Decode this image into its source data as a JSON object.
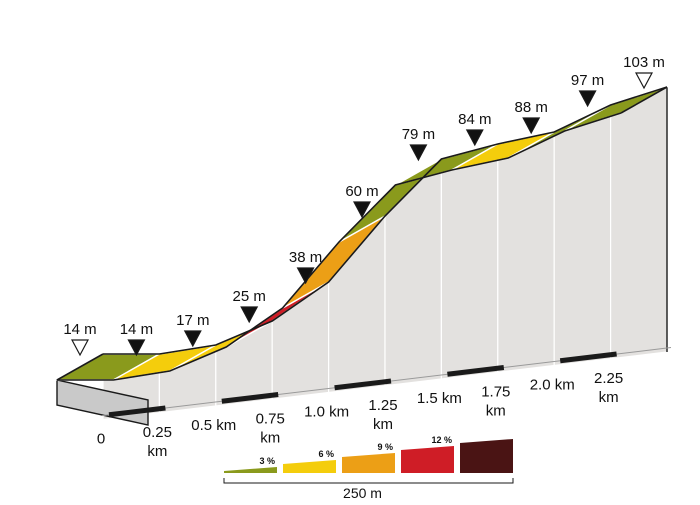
{
  "chart_data": {
    "type": "area",
    "title": "",
    "xlabel": "",
    "ylabel": "",
    "x_unit": "km",
    "y_unit": "m",
    "points": [
      {
        "km": 0.0,
        "elevation_m": 14
      },
      {
        "km": 0.25,
        "elevation_m": 14
      },
      {
        "km": 0.5,
        "elevation_m": 17
      },
      {
        "km": 0.75,
        "elevation_m": 25
      },
      {
        "km": 1.0,
        "elevation_m": 38
      },
      {
        "km": 1.25,
        "elevation_m": 60
      },
      {
        "km": 1.5,
        "elevation_m": 79
      },
      {
        "km": 1.75,
        "elevation_m": 84
      },
      {
        "km": 2.0,
        "elevation_m": 88
      },
      {
        "km": 2.25,
        "elevation_m": 97
      },
      {
        "km": 2.5,
        "elevation_m": 103
      }
    ],
    "elevation_labels": [
      "14 m",
      "14 m",
      "17 m",
      "25 m",
      "38 m",
      "60 m",
      "79 m",
      "84 m",
      "88 m",
      "97 m",
      "103 m"
    ],
    "distance_labels": [
      "0",
      "0.25 km",
      "0.5 km",
      "0.75 km",
      "1.0 km",
      "1.25 km",
      "1.5 km",
      "1.75 km",
      "2.0 km",
      "2.25 km"
    ],
    "segment_gradient_class": [
      3,
      6,
      6,
      12,
      9,
      3,
      3,
      6,
      3,
      3
    ],
    "legend": [
      {
        "label": "3 %",
        "color": "#8a9a1c"
      },
      {
        "label": "6 %",
        "color": "#f4cd0c"
      },
      {
        "label": "9 %",
        "color": "#ec9f16"
      },
      {
        "label": "12 %",
        "color": "#cf1d26"
      },
      {
        "label": "",
        "color": "#4a1414"
      }
    ],
    "scale_label": "250 m",
    "colors": {
      "side_wall": "#e3e1df",
      "front_wall": "#c9c9c9",
      "outline": "#1a1a1a",
      "marker_filled": "#111111",
      "marker_open": "#ffffff"
    }
  }
}
